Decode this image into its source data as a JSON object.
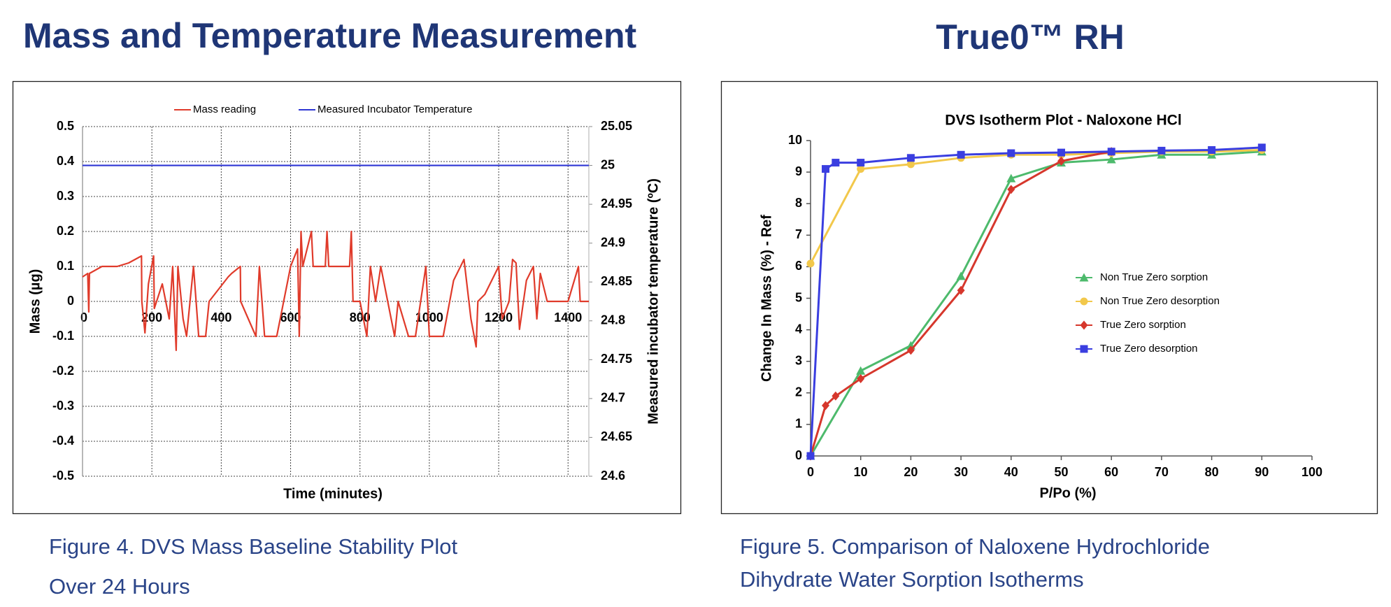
{
  "slide": {
    "headings": [
      "Mass and Temperature Measurement",
      "True0™ RH"
    ],
    "captions": [
      [
        "Figure 4.  DVS Mass Baseline Stability Plot",
        "Over 24 Hours"
      ],
      [
        "Figure 5.  Comparison of Naloxene Hydrochloride",
        "Dihydrate Water Sorption Isotherms"
      ]
    ]
  },
  "chart_data": [
    {
      "type": "line",
      "legend": "top",
      "grid": true,
      "x_label": "Time (minutes)",
      "y_label": "Mass (µg)",
      "y2_label": "Measured incubator temperature (ºC)",
      "xlim": [
        0,
        1460
      ],
      "xticks": [
        0,
        200,
        400,
        600,
        800,
        1000,
        1200,
        1400
      ],
      "ylim": [
        -0.5,
        0.5
      ],
      "yticks": [
        -0.5,
        -0.4,
        -0.3,
        -0.2,
        -0.1,
        0,
        0.1,
        0.2,
        0.3,
        0.4,
        0.5
      ],
      "y2lim": [
        24.6,
        25.05
      ],
      "y2ticks": [
        24.6,
        24.65,
        24.7,
        24.75,
        24.8,
        24.85,
        24.9,
        24.95,
        25,
        25.05
      ],
      "series": [
        {
          "name": "Mass reading",
          "color": "#e03b2b",
          "x": [
            0,
            15,
            18,
            20,
            56,
            100,
            133,
            170,
            171,
            180,
            190,
            205,
            207,
            230,
            250,
            260,
            270,
            275,
            290,
            300,
            320,
            335,
            355,
            365,
            420,
            430,
            455,
            456,
            500,
            510,
            525,
            560,
            600,
            620,
            625,
            630,
            635,
            660,
            665,
            700,
            705,
            710,
            770,
            775,
            780,
            800,
            820,
            830,
            845,
            860,
            880,
            900,
            910,
            940,
            960,
            990,
            1000,
            1040,
            1070,
            1100,
            1120,
            1135,
            1140,
            1160,
            1200,
            1210,
            1230,
            1240,
            1250,
            1260,
            1280,
            1300,
            1310,
            1320,
            1340,
            1400,
            1430,
            1435,
            1460
          ],
          "values": [
            0.07,
            0.08,
            -0.03,
            0.08,
            0.1,
            0.1,
            0.11,
            0.13,
            0,
            -0.09,
            0.05,
            0.13,
            -0.02,
            0.05,
            -0.05,
            0.1,
            -0.14,
            0.1,
            -0.05,
            -0.1,
            0.1,
            -0.1,
            -0.1,
            0,
            0.07,
            0.08,
            0.1,
            0,
            -0.1,
            0.1,
            -0.1,
            -0.1,
            0.1,
            0.15,
            -0.1,
            0.2,
            0.1,
            0.2,
            0.1,
            0.1,
            0.2,
            0.1,
            0.1,
            0.2,
            0,
            0,
            -0.1,
            0.1,
            0,
            0.1,
            0,
            -0.1,
            0,
            -0.1,
            -0.1,
            0.1,
            -0.1,
            -0.1,
            0.06,
            0.12,
            -0.05,
            -0.13,
            0,
            0.02,
            0.1,
            -0.05,
            0,
            0.12,
            0.11,
            -0.08,
            0.06,
            0.1,
            -0.05,
            0.08,
            0,
            0,
            0.1,
            0,
            0
          ]
        },
        {
          "name": "Measured Incubator Temperature",
          "color": "#2e36d4",
          "axis": "y2",
          "x": [
            0,
            1460
          ],
          "values": [
            25,
            25
          ]
        }
      ]
    },
    {
      "type": "line",
      "legend": "right",
      "grid": false,
      "title": "DVS Isotherm Plot - Naloxone HCl",
      "x_label": "P/Po (%)",
      "y_label": "Change In Mass (%) - Ref",
      "xlim": [
        0,
        100
      ],
      "xticks": [
        0,
        10,
        20,
        30,
        40,
        50,
        60,
        70,
        80,
        90,
        100
      ],
      "ylim": [
        0,
        10
      ],
      "yticks": [
        0,
        1,
        2,
        3,
        4,
        5,
        6,
        7,
        8,
        9,
        10
      ],
      "series": [
        {
          "name": "Non True Zero sorption",
          "color": "#4dba6c",
          "marker": "triangle",
          "x": [
            0,
            10,
            20,
            30,
            40,
            50,
            60,
            70,
            80,
            90
          ],
          "values": [
            0,
            2.7,
            3.5,
            5.7,
            8.8,
            9.3,
            9.4,
            9.55,
            9.55,
            9.65
          ]
        },
        {
          "name": "Non True Zero desorption",
          "color": "#f2c84b",
          "marker": "circle",
          "x": [
            0,
            10,
            20,
            30,
            40,
            50,
            60,
            70,
            80,
            90
          ],
          "values": [
            6.1,
            9.1,
            9.25,
            9.45,
            9.55,
            9.55,
            9.6,
            9.65,
            9.65,
            9.7
          ]
        },
        {
          "name": "True Zero sorption",
          "color": "#d6372c",
          "marker": "diamond",
          "x": [
            0,
            3,
            5,
            10,
            20,
            30,
            40,
            50,
            60
          ],
          "values": [
            0,
            1.6,
            1.9,
            2.45,
            3.35,
            5.25,
            8.45,
            9.35,
            9.65
          ]
        },
        {
          "name": "True Zero desorption",
          "color": "#3a3ee0",
          "marker": "square",
          "x": [
            0,
            3,
            5,
            10,
            20,
            30,
            40,
            50,
            60,
            70,
            80,
            90
          ],
          "values": [
            0,
            9.1,
            9.3,
            9.3,
            9.45,
            9.55,
            9.6,
            9.62,
            9.65,
            9.68,
            9.7,
            9.78
          ]
        }
      ]
    }
  ]
}
